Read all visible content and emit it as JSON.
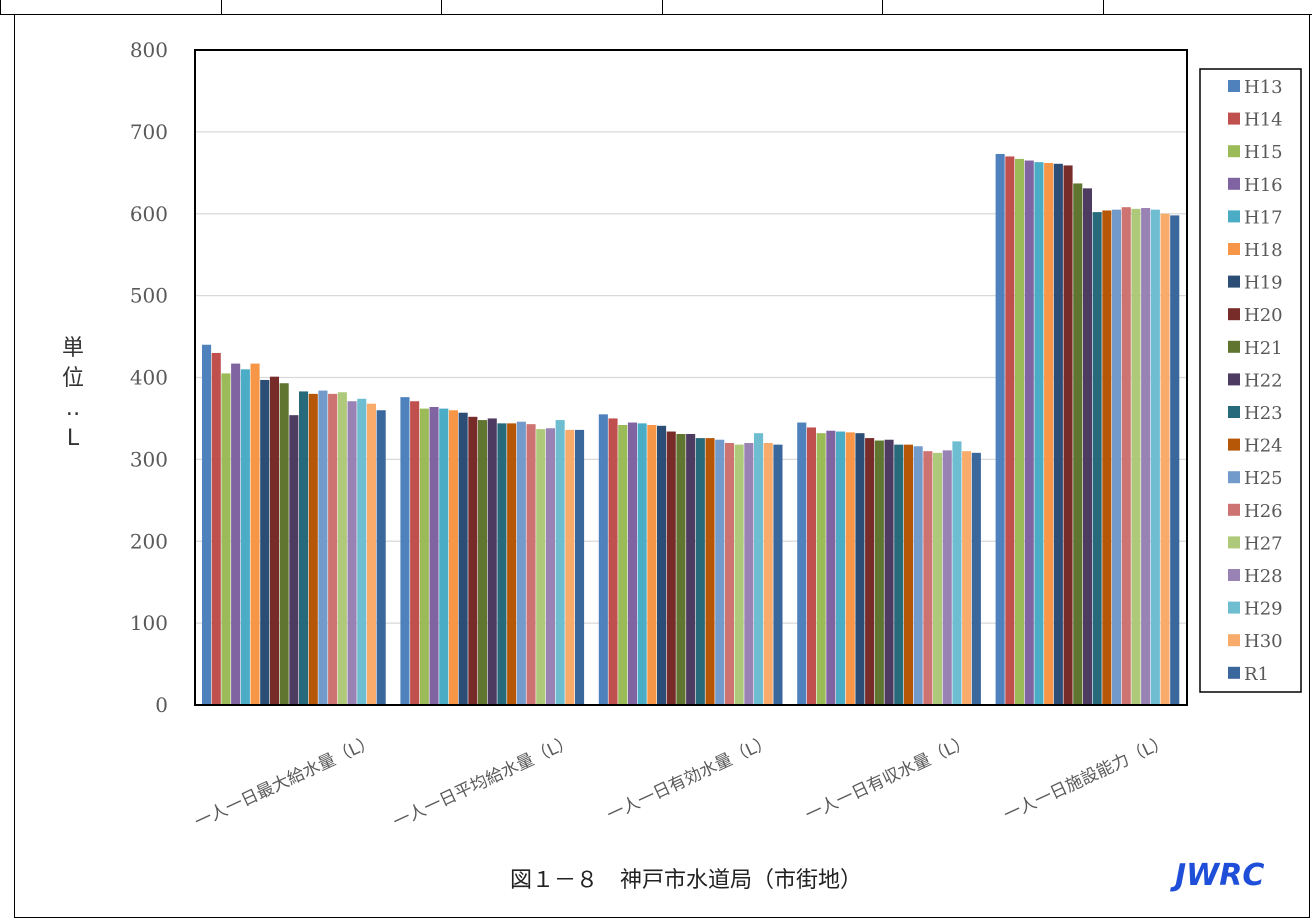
{
  "caption": "図１－８　神戸市水道局（市街地）",
  "logo_text": "JWRC",
  "chart_data": {
    "type": "bar",
    "ylabel": "単位：L",
    "ylim": [
      0,
      800
    ],
    "yticks": [
      0,
      100,
      200,
      300,
      400,
      500,
      600,
      700,
      800
    ],
    "grid": true,
    "legend_position": "right",
    "categories": [
      "一人一日最大給水量（L）",
      "一人一日平均給水量（L）",
      "一人一日有効水量（L）",
      "一人一日有収水量（L）",
      "一人一日施設能力（L）"
    ],
    "series": [
      {
        "name": "H13",
        "color": "#4F81BD",
        "values": [
          440,
          376,
          355,
          345,
          673
        ]
      },
      {
        "name": "H14",
        "color": "#C0504D",
        "values": [
          430,
          371,
          350,
          339,
          670
        ]
      },
      {
        "name": "H15",
        "color": "#9BBB59",
        "values": [
          405,
          362,
          342,
          332,
          667
        ]
      },
      {
        "name": "H16",
        "color": "#8064A2",
        "values": [
          417,
          364,
          345,
          335,
          665
        ]
      },
      {
        "name": "H17",
        "color": "#4BACC6",
        "values": [
          410,
          362,
          344,
          334,
          663
        ]
      },
      {
        "name": "H18",
        "color": "#F79646",
        "values": [
          417,
          360,
          342,
          333,
          662
        ]
      },
      {
        "name": "H19",
        "color": "#2C4D75",
        "values": [
          397,
          357,
          341,
          332,
          661
        ]
      },
      {
        "name": "H20",
        "color": "#772C2A",
        "values": [
          401,
          352,
          334,
          326,
          659
        ]
      },
      {
        "name": "H21",
        "color": "#5F7530",
        "values": [
          393,
          348,
          331,
          323,
          637
        ]
      },
      {
        "name": "H22",
        "color": "#4D3B62",
        "values": [
          354,
          350,
          331,
          324,
          631
        ]
      },
      {
        "name": "H23",
        "color": "#276A7C",
        "values": [
          383,
          344,
          326,
          318,
          602
        ]
      },
      {
        "name": "H24",
        "color": "#B65708",
        "values": [
          380,
          344,
          326,
          318,
          604
        ]
      },
      {
        "name": "H25",
        "color": "#729ACA",
        "values": [
          384,
          346,
          324,
          316,
          605
        ]
      },
      {
        "name": "H26",
        "color": "#CD7371",
        "values": [
          380,
          343,
          320,
          310,
          608
        ]
      },
      {
        "name": "H27",
        "color": "#AFC97A",
        "values": [
          382,
          337,
          318,
          308,
          606
        ]
      },
      {
        "name": "H28",
        "color": "#9983B5",
        "values": [
          371,
          338,
          320,
          311,
          607
        ]
      },
      {
        "name": "H29",
        "color": "#6FBDD1",
        "values": [
          374,
          348,
          332,
          322,
          605
        ]
      },
      {
        "name": "H30",
        "color": "#F9AB6B",
        "values": [
          368,
          336,
          320,
          310,
          600
        ]
      },
      {
        "name": "R1",
        "color": "#3A679C",
        "values": [
          360,
          336,
          318,
          308,
          598
        ]
      }
    ]
  }
}
